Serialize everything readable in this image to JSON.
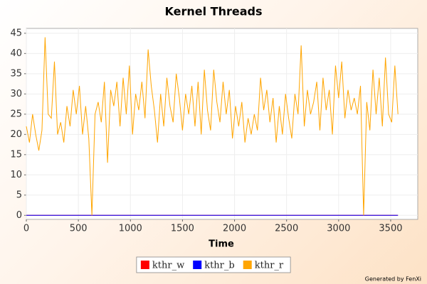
{
  "chart_data": {
    "type": "line",
    "title": "Kernel Threads",
    "x_label": "Time",
    "footnote": "Generated by FenXi",
    "xlim": [
      0,
      3760
    ],
    "xticks": [
      0,
      500,
      1000,
      1500,
      2000,
      2500,
      3000,
      3500
    ],
    "ylim": [
      -1,
      46.2
    ],
    "yticks": [
      0,
      5,
      10,
      15,
      20,
      25,
      30,
      35,
      40,
      45
    ],
    "grid": true,
    "legend": "bottom",
    "x": [
      0,
      30,
      60,
      90,
      120,
      150,
      180,
      210,
      240,
      270,
      300,
      330,
      360,
      390,
      420,
      450,
      480,
      510,
      540,
      570,
      600,
      630,
      660,
      690,
      720,
      750,
      780,
      810,
      840,
      870,
      900,
      930,
      960,
      990,
      1020,
      1050,
      1080,
      1110,
      1140,
      1170,
      1200,
      1230,
      1260,
      1290,
      1320,
      1350,
      1380,
      1410,
      1440,
      1470,
      1500,
      1530,
      1560,
      1590,
      1620,
      1650,
      1680,
      1710,
      1740,
      1770,
      1800,
      1830,
      1860,
      1890,
      1920,
      1950,
      1980,
      2010,
      2040,
      2070,
      2100,
      2130,
      2160,
      2190,
      2220,
      2250,
      2280,
      2310,
      2340,
      2370,
      2400,
      2430,
      2460,
      2490,
      2520,
      2550,
      2580,
      2610,
      2640,
      2670,
      2700,
      2730,
      2760,
      2790,
      2820,
      2850,
      2880,
      2910,
      2940,
      2970,
      3000,
      3030,
      3060,
      3090,
      3120,
      3150,
      3180,
      3210,
      3240,
      3270,
      3300,
      3330,
      3360,
      3390,
      3420,
      3450,
      3480,
      3510,
      3540,
      3570
    ],
    "series": [
      {
        "name": "kthr_w",
        "color": "#ff0000",
        "values": [
          0,
          0,
          0,
          0,
          0,
          0,
          0,
          0,
          0,
          0,
          0,
          0,
          0,
          0,
          0,
          0,
          0,
          0,
          0,
          0,
          0,
          0,
          0,
          0,
          0,
          0,
          0,
          0,
          0,
          0,
          0,
          0,
          0,
          0,
          0,
          0,
          0,
          0,
          0,
          0,
          0,
          0,
          0,
          0,
          0,
          0,
          0,
          0,
          0,
          0,
          0,
          0,
          0,
          0,
          0,
          0,
          0,
          0,
          0,
          0,
          0,
          0,
          0,
          0,
          0,
          0,
          0,
          0,
          0,
          0,
          0,
          0,
          0,
          0,
          0,
          0,
          0,
          0,
          0,
          0,
          0,
          0,
          0,
          0,
          0,
          0,
          0,
          0,
          0,
          0,
          0,
          0,
          0,
          0,
          0,
          0,
          0,
          0,
          0,
          0,
          0,
          0,
          0,
          0,
          0,
          0,
          0,
          0,
          0,
          0,
          0,
          0,
          0,
          0,
          0,
          0,
          0,
          0,
          0,
          0
        ]
      },
      {
        "name": "kthr_b",
        "color": "#0000ff",
        "values": [
          0,
          0,
          0,
          0,
          0,
          0,
          0,
          0,
          0,
          0,
          0,
          0,
          0,
          0,
          0,
          0,
          0,
          0,
          0,
          0,
          0,
          0,
          0,
          0,
          0,
          0,
          0,
          0,
          0,
          0,
          0,
          0,
          0,
          0,
          0,
          0,
          0,
          0,
          0,
          0,
          0,
          0,
          0,
          0,
          0,
          0,
          0,
          0,
          0,
          0,
          0,
          0,
          0,
          0,
          0,
          0,
          0,
          0,
          0,
          0,
          0,
          0,
          0,
          0,
          0,
          0,
          0,
          0,
          0,
          0,
          0,
          0,
          0,
          0,
          0,
          0,
          0,
          0,
          0,
          0,
          0,
          0,
          0,
          0,
          0,
          0,
          0,
          0,
          0,
          0,
          0,
          0,
          0,
          0,
          0,
          0,
          0,
          0,
          0,
          0,
          0,
          0,
          0,
          0,
          0,
          0,
          0,
          0,
          0,
          0,
          0,
          0,
          0,
          0,
          0,
          0,
          0,
          0,
          0,
          0
        ]
      },
      {
        "name": "kthr_r",
        "color": "#ffa500",
        "values": [
          22,
          18,
          25,
          20,
          16,
          21,
          44,
          25,
          24,
          38,
          20,
          23,
          18,
          27,
          22,
          31,
          25,
          32,
          20,
          27,
          19,
          0,
          25,
          28,
          23,
          33,
          13,
          31,
          27,
          33,
          22,
          34,
          25,
          37,
          20,
          30,
          26,
          33,
          24,
          41,
          32,
          26,
          18,
          30,
          22,
          34,
          27,
          23,
          35,
          29,
          21,
          30,
          25,
          32,
          22,
          33,
          20,
          36,
          26,
          21,
          36,
          28,
          23,
          33,
          25,
          31,
          19,
          27,
          22,
          28,
          18,
          24,
          20,
          25,
          21,
          34,
          26,
          31,
          23,
          29,
          18,
          27,
          20,
          30,
          24,
          19,
          30,
          25,
          42,
          22,
          31,
          25,
          28,
          33,
          21,
          34,
          26,
          31,
          20,
          37,
          29,
          38,
          24,
          31,
          26,
          29,
          25,
          32,
          0,
          28,
          21,
          36,
          25,
          34,
          22,
          39,
          25,
          23,
          37,
          25
        ]
      }
    ]
  }
}
